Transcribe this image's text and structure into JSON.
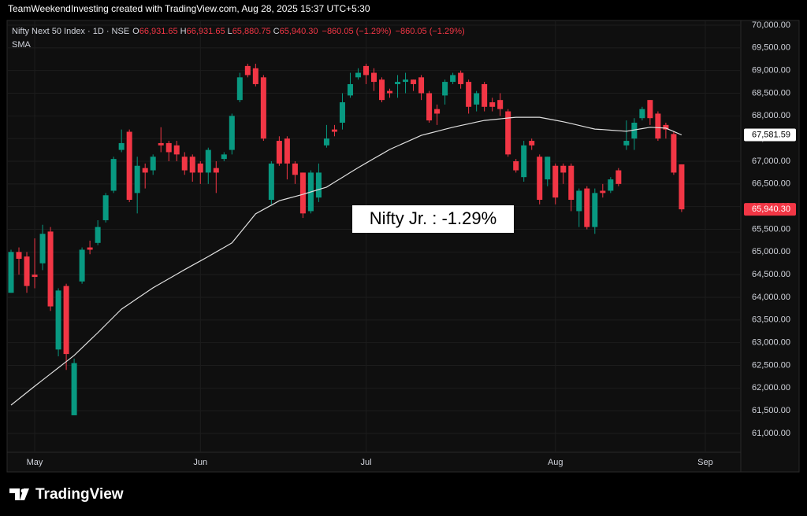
{
  "header": {
    "credit": "TeamWeekendInvesting created with TradingView.com, Aug 28, 2025 15:37 UTC+5:30"
  },
  "footer": {
    "brand": "TradingView"
  },
  "chart_data": {
    "type": "candlestick",
    "title": "Nifty Next 50 Index · 1D · NSE",
    "legend": {
      "ohlc": [
        {
          "key": "O",
          "value": "66,931.65"
        },
        {
          "key": "H",
          "value": "66,931.65"
        },
        {
          "key": "L",
          "value": "65,880.75"
        },
        {
          "key": "C",
          "value": "65,940.30"
        }
      ],
      "change": [
        "−860.05 (−1.29%)",
        "−860.05 (−1.29%)"
      ]
    },
    "annotation": "Nifty Jr. : -1.29%",
    "up_color": "#089981",
    "down_color": "#f23645",
    "open": [
      64100,
      65000,
      64900,
      64500,
      64750,
      65450,
      62850,
      64250,
      61400,
      64350,
      65100,
      65200,
      65700,
      66350,
      67250,
      67650,
      66300,
      66850,
      66800,
      67400,
      67400,
      67350,
      67100,
      67100,
      66950,
      66750,
      66850,
      67050,
      67250,
      68350,
      69100,
      69050,
      68850,
      66150,
      67450,
      67500,
      66950,
      66750,
      65900,
      66200,
      67350,
      67700,
      67850,
      68450,
      68850,
      69100,
      68950,
      68800,
      68550,
      68700,
      68750,
      68800,
      68850,
      68500,
      68150,
      68450,
      68750,
      68950,
      68750,
      68250,
      68700,
      68300,
      68350,
      68100,
      67000,
      66650,
      67450,
      67100,
      66600,
      66900,
      66900,
      66900,
      65900,
      66400,
      65550,
      66350,
      66350,
      66800,
      67350,
      67500,
      67950,
      68350,
      68050,
      67800,
      67600,
      66931.65
    ],
    "high": [
      65050,
      65100,
      65000,
      65300,
      65600,
      65550,
      64200,
      64300,
      62650,
      65100,
      65250,
      65700,
      66300,
      67100,
      67700,
      67700,
      67100,
      66950,
      67150,
      67750,
      67450,
      67450,
      67200,
      67150,
      67000,
      67300,
      67000,
      67200,
      68050,
      68950,
      69150,
      69150,
      68900,
      67000,
      67550,
      67550,
      67000,
      66750,
      66800,
      66950,
      67800,
      67800,
      68500,
      68950,
      69050,
      69150,
      69050,
      68850,
      68600,
      68900,
      68950,
      68800,
      68900,
      68550,
      68250,
      68800,
      68950,
      69000,
      68800,
      68550,
      68750,
      68400,
      68500,
      68150,
      67050,
      67450,
      67500,
      67150,
      67100,
      66950,
      66950,
      66950,
      66400,
      66450,
      66400,
      66500,
      66650,
      66850,
      67900,
      67950,
      68200,
      68350,
      68100,
      67850,
      67650,
      66931.65
    ],
    "low": [
      64100,
      64500,
      64100,
      64200,
      64600,
      63700,
      62700,
      62400,
      61400,
      64300,
      64950,
      65150,
      65650,
      66300,
      67200,
      66100,
      65850,
      66400,
      66700,
      67200,
      67000,
      67000,
      66700,
      66550,
      66500,
      66500,
      66300,
      67000,
      67150,
      68300,
      68850,
      68650,
      67450,
      66050,
      66900,
      66600,
      66500,
      65750,
      65850,
      66100,
      67300,
      67550,
      67700,
      68400,
      68800,
      68700,
      68550,
      68300,
      68400,
      68400,
      68500,
      68550,
      68350,
      67850,
      67800,
      68250,
      68700,
      68600,
      68050,
      68100,
      68100,
      68100,
      68000,
      67100,
      66750,
      66550,
      67250,
      66050,
      66450,
      66050,
      66500,
      65900,
      65550,
      65500,
      65400,
      66200,
      66300,
      66450,
      67250,
      67250,
      67900,
      67800,
      67450,
      67500,
      66700,
      65880.75
    ],
    "close": [
      65000,
      64850,
      64250,
      64450,
      65400,
      63800,
      64150,
      62750,
      62550,
      65050,
      65050,
      65550,
      66250,
      67050,
      67400,
      66150,
      66900,
      66750,
      67100,
      67350,
      67200,
      67150,
      66800,
      66750,
      66750,
      67250,
      66750,
      67150,
      68000,
      68850,
      68900,
      68700,
      67500,
      66950,
      66950,
      66950,
      66700,
      65850,
      66750,
      66750,
      67500,
      67650,
      68300,
      68700,
      68950,
      68900,
      68750,
      68350,
      68500,
      68750,
      68800,
      68700,
      68500,
      67900,
      68050,
      68750,
      68900,
      68700,
      68200,
      68500,
      68200,
      68200,
      68150,
      67150,
      66800,
      67350,
      67350,
      66150,
      67100,
      66200,
      66750,
      66150,
      66350,
      65550,
      66300,
      66300,
      66600,
      66500,
      67450,
      67850,
      68150,
      67950,
      67500,
      67700,
      66750,
      65940.3
    ],
    "close_last_label": "65,940.30",
    "series": [
      {
        "name": "SMA",
        "color": "#e0e0e0",
        "last_label": "67,581.59",
        "values": [
          61625,
          61763,
          61902,
          62040,
          62176,
          62312,
          62448,
          62584,
          62720,
          62887,
          63053,
          63220,
          63393,
          63567,
          63740,
          63858,
          63975,
          64093,
          64210,
          64310,
          64410,
          64510,
          64610,
          64707,
          64803,
          64900,
          65000,
          65100,
          65200,
          65413,
          65627,
          65840,
          65937,
          66033,
          66130,
          66177,
          66223,
          66270,
          66323,
          66377,
          66430,
          66538,
          66645,
          66753,
          66860,
          66960,
          67060,
          67160,
          67260,
          67338,
          67415,
          67493,
          67570,
          67615,
          67660,
          67705,
          67750,
          67788,
          67825,
          67863,
          67900,
          67918,
          67935,
          67953,
          67970,
          67970,
          67970,
          67970,
          67937,
          67903,
          67870,
          67830,
          67790,
          67750,
          67710,
          67698,
          67685,
          67673,
          67660,
          67690,
          67720,
          67750,
          67740,
          67730,
          67656,
          67581.59
        ]
      }
    ],
    "xlim": [
      -0.5,
      92.5
    ],
    "xticks": [
      {
        "value": 3,
        "label": "May"
      },
      {
        "value": 24,
        "label": "Jun"
      },
      {
        "value": 45,
        "label": "Jul"
      },
      {
        "value": 69,
        "label": "Aug"
      },
      {
        "value": 88,
        "label": "Sep"
      }
    ],
    "ylim": [
      60584,
      70104
    ],
    "yticks": [
      {
        "value": 61000,
        "label": "61,000.00"
      },
      {
        "value": 61500,
        "label": "61,500.00"
      },
      {
        "value": 62000,
        "label": "62,000.00"
      },
      {
        "value": 62500,
        "label": "62,500.00"
      },
      {
        "value": 63000,
        "label": "63,000.00"
      },
      {
        "value": 63500,
        "label": "63,500.00"
      },
      {
        "value": 64000,
        "label": "64,000.00"
      },
      {
        "value": 64500,
        "label": "64,500.00"
      },
      {
        "value": 65000,
        "label": "65,000.00"
      },
      {
        "value": 65500,
        "label": "65,500.00"
      },
      {
        "value": 66000,
        "label": "66,000.00"
      },
      {
        "value": 66500,
        "label": "66,500.00"
      },
      {
        "value": 67000,
        "label": "67,000.00"
      },
      {
        "value": 67500,
        "label": "67,500.00"
      },
      {
        "value": 68000,
        "label": "68,000.00"
      },
      {
        "value": 68500,
        "label": "68,500.00"
      },
      {
        "value": 69000,
        "label": "69,000.00"
      },
      {
        "value": 69500,
        "label": "69,500.00"
      },
      {
        "value": 70000,
        "label": "70,000.00"
      }
    ],
    "grid": true
  }
}
